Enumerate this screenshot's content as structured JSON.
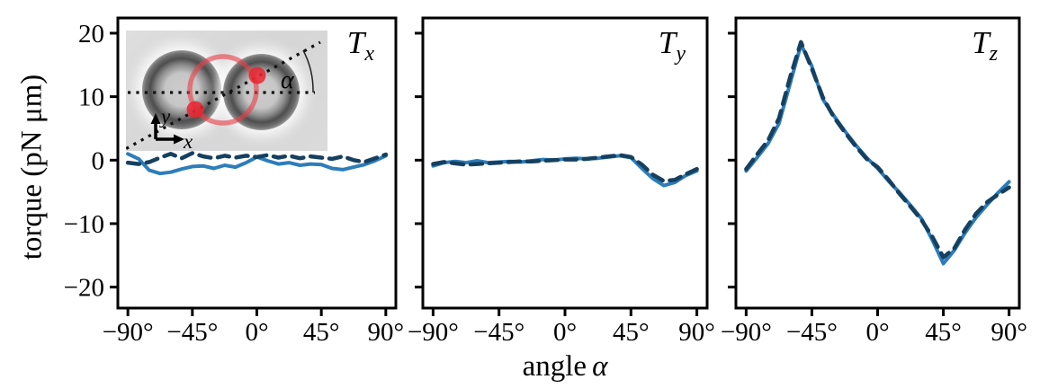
{
  "figure": {
    "ylabel": "torque (pN μm)",
    "xlabel": "angle",
    "xlabel_symbol": "α"
  },
  "panels": [
    {
      "label_base": "T",
      "label_sub": "x"
    },
    {
      "label_base": "T",
      "label_sub": "y"
    },
    {
      "label_base": "T",
      "label_sub": "z"
    }
  ],
  "inset": {
    "alpha_label": "α",
    "x_axis_label": "x",
    "y_axis_label": "y",
    "red_color": "#e8414b"
  },
  "colors": {
    "solid_line": "#2d7dbb",
    "dashed_line": "#16405f",
    "axis": "#000000"
  },
  "chart_data": [
    {
      "type": "line",
      "title": "T_x",
      "xlabel": "angle α",
      "ylabel": "torque (pN μm)",
      "xlim": [
        -97,
        97
      ],
      "ylim": [
        -23.3,
        22.4
      ],
      "xticks": [
        -90,
        -45,
        0,
        45,
        90
      ],
      "yticks": [
        -20,
        -10,
        0,
        10,
        20
      ],
      "xtick_labels": [
        "−90°",
        "−45°",
        "0°",
        "45°",
        "90°"
      ],
      "ytick_labels": [
        "−20",
        "−10",
        "0",
        "10",
        "20"
      ],
      "grid": false,
      "legend": null,
      "x": [
        -90,
        -82.5,
        -75,
        -67.5,
        -60,
        -52.5,
        -45,
        -37.5,
        -30,
        -22.5,
        -15,
        -7.5,
        0,
        7.5,
        15,
        22.5,
        30,
        37.5,
        45,
        52.5,
        60,
        67.5,
        75,
        82.5,
        90
      ],
      "series": [
        {
          "name": "solid",
          "style": "solid",
          "color": "#2d7dbb",
          "values": [
            1.0,
            0.2,
            -1.6,
            -2.1,
            -1.9,
            -1.4,
            -1.0,
            -0.9,
            -1.3,
            -0.8,
            -1.1,
            -0.4,
            0.5,
            -0.1,
            -0.6,
            -0.4,
            -0.8,
            -0.6,
            -0.7,
            -1.3,
            -1.5,
            -1.1,
            -0.7,
            -0.1,
            0.7
          ]
        },
        {
          "name": "dashed",
          "style": "dashed",
          "color": "#16405f",
          "values": [
            -0.4,
            -0.6,
            -0.3,
            0.4,
            1.0,
            0.3,
            1.1,
            0.6,
            0.3,
            0.7,
            0.4,
            0.7,
            0.5,
            0.8,
            0.4,
            0.7,
            0.3,
            0.6,
            0.4,
            0.2,
            0.6,
            0.0,
            -0.3,
            0.3,
            0.9
          ]
        }
      ]
    },
    {
      "type": "line",
      "title": "T_y",
      "xlabel": "angle α",
      "ylabel": "torque (pN μm)",
      "xlim": [
        -97,
        97
      ],
      "ylim": [
        -23.3,
        22.4
      ],
      "xticks": [
        -90,
        -45,
        0,
        45,
        90
      ],
      "yticks": [
        -20,
        -10,
        0,
        10,
        20
      ],
      "xtick_labels": [
        "−90°",
        "−45°",
        "0°",
        "45°",
        "90°"
      ],
      "ytick_labels": null,
      "grid": false,
      "legend": null,
      "x": [
        -90,
        -82.5,
        -75,
        -67.5,
        -60,
        -52.5,
        -45,
        -37.5,
        -30,
        -22.5,
        -15,
        -7.5,
        0,
        7.5,
        15,
        22.5,
        30,
        37.5,
        45,
        52.5,
        60,
        67.5,
        75,
        82.5,
        90
      ],
      "series": [
        {
          "name": "solid",
          "style": "solid",
          "color": "#2d7dbb",
          "values": [
            -0.9,
            -0.4,
            -0.2,
            -0.4,
            -0.1,
            -0.4,
            -0.3,
            -0.2,
            -0.3,
            -0.1,
            0.1,
            0.0,
            0.2,
            0.3,
            0.2,
            0.3,
            0.5,
            0.7,
            0.4,
            -1.3,
            -2.9,
            -4.0,
            -3.5,
            -2.4,
            -1.7
          ]
        },
        {
          "name": "dashed",
          "style": "dashed",
          "color": "#16405f",
          "values": [
            -0.6,
            -0.3,
            -0.5,
            -0.7,
            -0.6,
            -0.5,
            -0.4,
            -0.3,
            -0.2,
            -0.2,
            -0.1,
            0.0,
            0.1,
            0.1,
            0.2,
            0.4,
            0.6,
            0.8,
            0.5,
            -0.7,
            -2.3,
            -3.3,
            -3.1,
            -2.2,
            -1.4
          ]
        }
      ]
    },
    {
      "type": "line",
      "title": "T_z",
      "xlabel": "angle α",
      "ylabel": "torque (pN μm)",
      "xlim": [
        -97,
        97
      ],
      "ylim": [
        -23.3,
        22.4
      ],
      "xticks": [
        -90,
        -45,
        0,
        45,
        90
      ],
      "yticks": [
        -20,
        -10,
        0,
        10,
        20
      ],
      "xtick_labels": [
        "−90°",
        "−45°",
        "0°",
        "45°",
        "90°"
      ],
      "ytick_labels": null,
      "grid": false,
      "legend": null,
      "x": [
        -90,
        -82.5,
        -75,
        -67.5,
        -60,
        -52.5,
        -45,
        -37.5,
        -30,
        -22.5,
        -15,
        -7.5,
        0,
        7.5,
        15,
        22.5,
        30,
        37.5,
        45,
        52.5,
        60,
        67.5,
        75,
        82.5,
        90
      ],
      "series": [
        {
          "name": "solid",
          "style": "solid",
          "color": "#2d7dbb",
          "values": [
            -1.7,
            0.4,
            2.6,
            5.8,
            12.0,
            18.2,
            14.8,
            9.6,
            7.0,
            4.6,
            2.4,
            0.4,
            -1.3,
            -3.3,
            -5.1,
            -7.1,
            -9.2,
            -12.6,
            -16.3,
            -14.2,
            -11.4,
            -9.0,
            -7.0,
            -5.1,
            -3.4
          ]
        },
        {
          "name": "dashed",
          "style": "dashed",
          "color": "#16405f",
          "values": [
            -1.4,
            0.9,
            3.1,
            6.6,
            13.0,
            18.6,
            14.4,
            9.9,
            6.8,
            4.4,
            2.2,
            0.2,
            -1.1,
            -3.1,
            -5.3,
            -7.3,
            -9.4,
            -12.1,
            -15.3,
            -13.9,
            -10.9,
            -8.4,
            -6.6,
            -5.4,
            -4.3
          ]
        }
      ]
    }
  ]
}
